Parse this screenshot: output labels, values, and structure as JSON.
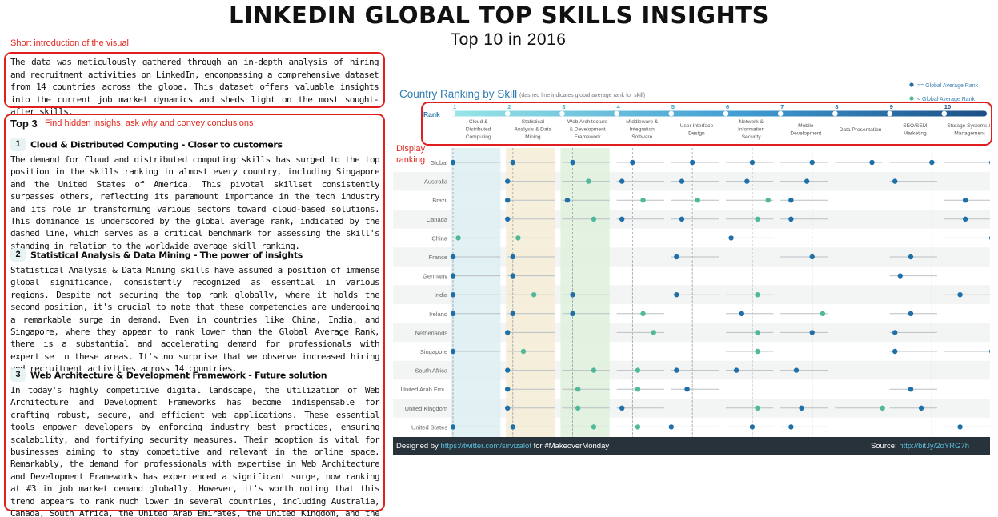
{
  "header": {
    "title": "LINKEDIN GLOBAL TOP SKILLS INSIGHTS",
    "subtitle": "Top 10 in 2016"
  },
  "annotations": {
    "intro_note": "Short introduction of the visual",
    "top3_note": "Find hidden insighs, ask why and convey conclusions",
    "display_note_1": "Display",
    "display_note_2": "ranking"
  },
  "intro": {
    "text": "The data was meticulously gathered through an in-depth analysis of hiring and recruitment activities on LinkedIn, encompassing a comprehensive dataset from 14 countries across the globe. This dataset offers valuable insights into the current job market dynamics and sheds light on the most sought-after skills."
  },
  "top3": {
    "heading": "Top 3",
    "items": [
      {
        "num": "1",
        "title": "Cloud & Distributed Computing - Closer to customers",
        "body": "The demand for Cloud and distributed computing skills has surged to the top position in the skills ranking in almost every country, including Singapore and the United States of America. This pivotal skillset consistently surpasses others, reflecting its paramount importance in the tech industry and its role in transforming various sectors toward cloud-based solutions. This dominance is underscored by the global average rank, indicated by the dashed line, which serves as a critical benchmark for assessing the skill's standing in relation to the worldwide average skill ranking."
      },
      {
        "num": "2",
        "title": "Statistical Analysis & Data Mining - The power of insights",
        "body": "Statistical Analysis & Data Mining skills have assumed a position of immense global significance, consistently recognized as essential in various regions. Despite not securing the top rank globally, where it holds the second position, it's crucial to note that these competencies are undergoing a remarkable surge in demand. Even in countries like China, India, and Singapore, where they appear to rank lower than the Global Average Rank, there is a substantial and accelerating demand for professionals with expertise in these areas. It's no surprise that we observe increased hiring and recruitment activities across 14 countries."
      },
      {
        "num": "3",
        "title": "Web Architecture & Development Framework - Future solution",
        "body": "In today's highly competitive digital landscape, the utilization of Web Architecture and Development Frameworks has become indispensable for crafting robust, secure, and efficient web applications. These essential tools empower developers by enforcing industry best practices, ensuring scalability, and fortifying security measures. Their adoption is vital for businesses aiming to stay competitive and relevant in the online space. Remarkably, the demand for professionals with expertise in Web Architecture and Development Frameworks has experienced a significant surge, now ranking at #3 in job market demand globally. However, it's worth noting that this trend appears to rank much lower in several countries, including Australia, Canada, South Africa, the United Arab Emirates, the United Kingdom, and the United States."
      }
    ]
  },
  "viz": {
    "title": "Country Ranking by Skill",
    "title_note": "(dashed line indicates global average rank for skill)",
    "legend": [
      {
        "label": ">= Global Average Rank",
        "color": "#1f6fa8"
      },
      {
        "label": "< Global Average Rank",
        "color": "#4fb99a"
      }
    ],
    "rank_label": "Rank",
    "footer_designed_by": "Designed by",
    "footer_link": "https://twitter.com/sirvizalot",
    "footer_tag": "for #MakeoverMonday",
    "footer_source_label": "Source:",
    "footer_source_link": "http://bit.ly/2oYRG7h"
  },
  "chart_data": {
    "type": "scatter",
    "title": "Country Ranking by Skill",
    "subtitle": "(dashed line indicates global average rank for skill)",
    "x_scale": "rank within each skill column, 1 = left edge, 10 = right edge",
    "skills": [
      {
        "rank": "1",
        "name": "Cloud & Distributed Computing",
        "lines": [
          "Cloud &",
          "Distributed",
          "Computing"
        ]
      },
      {
        "rank": "2",
        "name": "Statistical Analysis & Data Mining",
        "lines": [
          "Statistical",
          "Analysis & Data",
          "Mining"
        ]
      },
      {
        "rank": "3",
        "name": "Web Architecture & Development Framework",
        "lines": [
          "Web Architecture",
          "& Development",
          "Framework"
        ]
      },
      {
        "rank": "4",
        "name": "Middleware & Integration Software",
        "lines": [
          "Middleware &",
          "Integration",
          "Software"
        ]
      },
      {
        "rank": "5",
        "name": "User Interface Design",
        "lines": [
          "User Interface",
          "Design"
        ]
      },
      {
        "rank": "6",
        "name": "Network & Information Security",
        "lines": [
          "Network &",
          "Information",
          "Security"
        ]
      },
      {
        "rank": "7",
        "name": "Mobile Development",
        "lines": [
          "Mobile",
          "Development"
        ]
      },
      {
        "rank": "8",
        "name": "Data Presentation",
        "lines": [
          "Data Presentation"
        ]
      },
      {
        "rank": "9",
        "name": "SEO/SEM Marketing",
        "lines": [
          "SEO/SEM",
          "Marketing"
        ]
      },
      {
        "rank": "10",
        "name": "Storage Systems & Management",
        "lines": [
          "Storage Systems &",
          "Management"
        ]
      }
    ],
    "countries": [
      "Global",
      "Australia",
      "Brazil",
      "Canada",
      "China",
      "France",
      "Germany",
      "India",
      "Ireland",
      "Netherlands",
      "Singapore",
      "South Africa",
      "United Arab Emi..",
      "United Kingdom",
      "United States"
    ],
    "global_ranks": [
      1,
      2,
      3,
      4,
      5,
      6,
      7,
      8,
      9,
      10
    ],
    "rows": [
      [
        1,
        2,
        3,
        4,
        5,
        6,
        7,
        8,
        9,
        10
      ],
      [
        null,
        1,
        6,
        2,
        3,
        5,
        6,
        null,
        2,
        null
      ],
      [
        null,
        1,
        2,
        6,
        6,
        9,
        3,
        null,
        null,
        5
      ],
      [
        null,
        1,
        7,
        2,
        3,
        7,
        3,
        null,
        null,
        5
      ],
      [
        2,
        3,
        null,
        null,
        null,
        2,
        null,
        null,
        null,
        10
      ],
      [
        1,
        2,
        null,
        null,
        2,
        null,
        7,
        null,
        5,
        null
      ],
      [
        1,
        2,
        null,
        null,
        null,
        null,
        null,
        null,
        3,
        null
      ],
      [
        1,
        6,
        3,
        null,
        2,
        7,
        null,
        null,
        null,
        4
      ],
      [
        1,
        2,
        3,
        6,
        null,
        4,
        9,
        null,
        5,
        null
      ],
      [
        null,
        1,
        null,
        8,
        null,
        7,
        7,
        null,
        2,
        null
      ],
      [
        1,
        4,
        null,
        null,
        null,
        7,
        null,
        null,
        2,
        10
      ],
      [
        null,
        1,
        7,
        5,
        2,
        3,
        4,
        null,
        null,
        null
      ],
      [
        null,
        1,
        4,
        5,
        4,
        null,
        null,
        null,
        5,
        null
      ],
      [
        null,
        1,
        4,
        2,
        null,
        7,
        5,
        10,
        7,
        null
      ],
      [
        1,
        2,
        7,
        5,
        1,
        6,
        3,
        null,
        null,
        4
      ]
    ]
  }
}
